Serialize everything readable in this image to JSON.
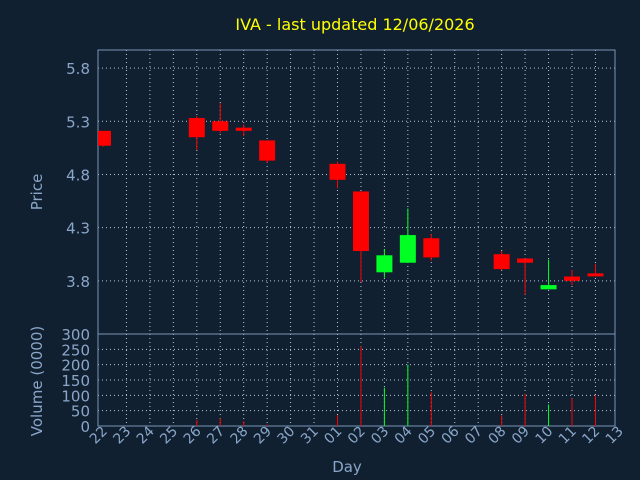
{
  "chart_data": {
    "type": "candlestick",
    "title": "IVA -  last updated 12/06/2026",
    "xlabel": "Day",
    "colors": {
      "background": "#102031",
      "frame": "#7a96b8",
      "grid": "#b8c8dc",
      "text": "#8aa6c8",
      "title": "#ffff00",
      "up": "#00ff22",
      "down": "#ff0000"
    },
    "x_tick_labels": [
      "22",
      "23",
      "24",
      "25",
      "26",
      "27",
      "28",
      "29",
      "30",
      "31",
      "01",
      "02",
      "03",
      "04",
      "05",
      "06",
      "07",
      "08",
      "09",
      "10",
      "11",
      "12",
      "13"
    ],
    "price_panel": {
      "ylabel": "Price",
      "yticks": [
        "5.8",
        "5.3",
        "4.8",
        "4.3",
        "3.8"
      ],
      "ylim": [
        3.3,
        5.97
      ],
      "grid": true
    },
    "volume_panel": {
      "ylabel": "Volume (0000)",
      "yticks": [
        "300",
        "250",
        "200",
        "150",
        "100",
        "50",
        "0"
      ],
      "ylim": [
        0,
        300
      ],
      "grid": true
    },
    "candles": [
      {
        "day": "22",
        "open": 5.21,
        "high": 5.21,
        "low": 5.06,
        "close": 5.07,
        "volume": 0
      },
      {
        "day": "26",
        "open": 5.33,
        "high": 5.35,
        "low": 5.03,
        "close": 5.15,
        "volume": 20
      },
      {
        "day": "27",
        "open": 5.3,
        "high": 5.47,
        "low": 5.19,
        "close": 5.21,
        "volume": 25
      },
      {
        "day": "28",
        "open": 5.24,
        "high": 5.27,
        "low": 5.16,
        "close": 5.21,
        "volume": 15
      },
      {
        "day": "29",
        "open": 5.12,
        "high": 5.12,
        "low": 4.91,
        "close": 4.93,
        "volume": 5
      },
      {
        "day": "01",
        "open": 4.9,
        "high": 4.92,
        "low": 4.67,
        "close": 4.75,
        "volume": 35
      },
      {
        "day": "02",
        "open": 4.64,
        "high": 4.64,
        "low": 3.79,
        "close": 4.08,
        "volume": 260
      },
      {
        "day": "03",
        "open": 3.88,
        "high": 4.1,
        "low": 3.83,
        "close": 4.04,
        "volume": 125
      },
      {
        "day": "04",
        "open": 3.97,
        "high": 4.48,
        "low": 3.97,
        "close": 4.23,
        "volume": 200
      },
      {
        "day": "05",
        "open": 4.2,
        "high": 4.24,
        "low": 3.99,
        "close": 4.02,
        "volume": 110
      },
      {
        "day": "08",
        "open": 4.05,
        "high": 4.08,
        "low": 3.9,
        "close": 3.91,
        "volume": 35
      },
      {
        "day": "09",
        "open": 4.01,
        "high": 4.01,
        "low": 3.67,
        "close": 3.97,
        "volume": 105
      },
      {
        "day": "10",
        "open": 3.72,
        "high": 4.0,
        "low": 3.72,
        "close": 3.76,
        "volume": 70
      },
      {
        "day": "11",
        "open": 3.84,
        "high": 3.9,
        "low": 3.76,
        "close": 3.8,
        "volume": 90
      },
      {
        "day": "12",
        "open": 3.87,
        "high": 3.96,
        "low": 3.84,
        "close": 3.85,
        "volume": 100
      }
    ]
  }
}
